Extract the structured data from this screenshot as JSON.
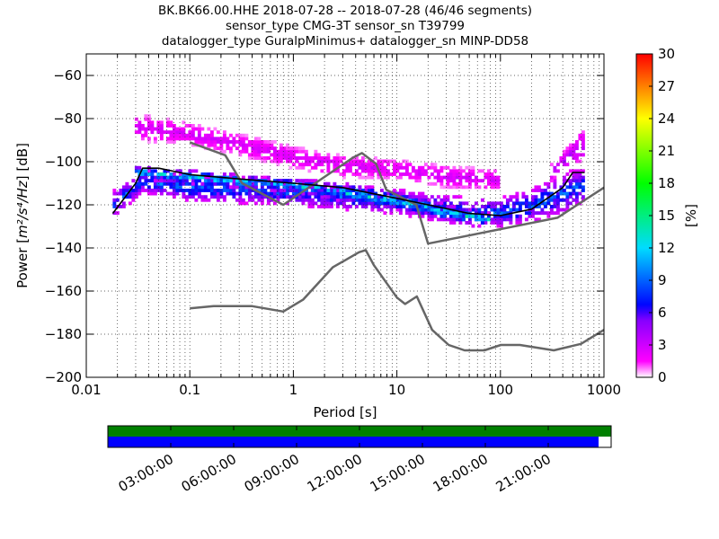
{
  "chart_data": [
    {
      "type": "heatmap",
      "title_lines": [
        "BK.BK66.00.HHE   2018-07-28 -- 2018-07-28  (46/46 segments)",
        "sensor_type CMG-3T sensor_sn T39799",
        "datalogger_type GuralpMinimus+ datalogger_sn MINP-DD58"
      ],
      "xlabel": "Period [s]",
      "ylabel_prefix": "Power [",
      "ylabel_unit": "m²/s⁴/Hz",
      "ylabel_suffix": "] [dB]",
      "x_scale": "log",
      "xlim": [
        0.01,
        1000
      ],
      "x_ticks": [
        0.01,
        0.1,
        1,
        10,
        100,
        1000
      ],
      "x_tick_labels": [
        "0.01",
        "0.1",
        "1",
        "10",
        "100",
        "1000"
      ],
      "ylim": [
        -200,
        -50
      ],
      "y_ticks": [
        -200,
        -180,
        -160,
        -140,
        -120,
        -100,
        -80,
        -60
      ],
      "y_tick_labels": [
        "−200",
        "−180",
        "−160",
        "−140",
        "−120",
        "−100",
        "−80",
        "−60"
      ],
      "grid": true,
      "colorbar": {
        "label": "[%]",
        "range": [
          0,
          30
        ],
        "ticks": [
          0,
          3,
          6,
          9,
          12,
          15,
          18,
          21,
          24,
          27,
          30
        ],
        "tick_labels": [
          "0",
          "3",
          "6",
          "9",
          "12",
          "15",
          "18",
          "21",
          "24",
          "27",
          "30"
        ],
        "colormap": "pqlx"
      },
      "series": [
        {
          "role": "new_high_noise_model",
          "color": "#666666",
          "x": [
            0.1,
            0.22,
            0.32,
            0.8,
            3.8,
            4.6,
            6.3,
            7.9,
            15.4,
            20,
            354.8,
            1000
          ],
          "y": [
            -91,
            -97,
            -110,
            -120,
            -98,
            -96,
            -101,
            -113,
            -120,
            -138,
            -126,
            -112
          ]
        },
        {
          "role": "new_low_noise_model",
          "color": "#666666",
          "x": [
            0.1,
            0.17,
            0.4,
            0.8,
            1.24,
            2.4,
            4.3,
            5,
            6,
            10,
            12,
            15.6,
            21.9,
            31.6,
            45,
            70,
            101,
            154,
            328,
            600,
            1000
          ],
          "y": [
            -168,
            -167,
            -167,
            -169.5,
            -164,
            -149,
            -142,
            -141,
            -148,
            -163,
            -166,
            -162.5,
            -178,
            -185,
            -187.5,
            -187.5,
            -185,
            -185,
            -187.5,
            -184.5,
            -178
          ]
        },
        {
          "role": "mode",
          "color": "#000000",
          "x": [
            0.018,
            0.03,
            0.035,
            0.05,
            0.1,
            0.3,
            1,
            3,
            10,
            20,
            50,
            100,
            200,
            400,
            500,
            650
          ],
          "y": [
            -124,
            -110,
            -103,
            -103,
            -106,
            -108,
            -110,
            -112,
            -117,
            -120,
            -124,
            -125,
            -122,
            -112,
            -105,
            -105
          ]
        }
      ],
      "psd_density_bands": [
        {
          "x": [
            0.018,
            0.035,
            0.1,
            1,
            10,
            50,
            100,
            200,
            500,
            650
          ],
          "y_low": [
            -126,
            -114,
            -118,
            -120,
            -124,
            -130,
            -130,
            -128,
            -122,
            -118
          ],
          "y_high": [
            -114,
            -104,
            -106,
            -108,
            -113,
            -117,
            -117,
            -113,
            -104,
            -104
          ],
          "peak_percent": 9
        },
        {
          "x": [
            0.03,
            0.1,
            0.3,
            1,
            3,
            10,
            30,
            80
          ],
          "y_low": [
            -108,
            -110,
            -112,
            -114,
            -118,
            -122,
            -127,
            -130
          ],
          "y_high": [
            -102,
            -104,
            -106,
            -108,
            -110,
            -114,
            -120,
            -124
          ],
          "peak_percent": 13
        },
        {
          "x": [
            0.03,
            0.1,
            0.3,
            1,
            3,
            10,
            30,
            100
          ],
          "y_low": [
            -90,
            -92,
            -97,
            -103,
            -107,
            -108,
            -112,
            -113
          ],
          "y_high": [
            -78,
            -82,
            -87,
            -93,
            -97,
            -99,
            -102,
            -104
          ],
          "peak_percent": 3
        },
        {
          "x": [
            300,
            400,
            600,
            650
          ],
          "y_low": [
            -110,
            -104,
            -100,
            -100
          ],
          "y_high": [
            -102,
            -96,
            -86,
            -86
          ],
          "peak_percent": 4
        }
      ]
    },
    {
      "type": "timeline",
      "ticks": [
        "03:00:00",
        "06:00:00",
        "09:00:00",
        "12:00:00",
        "15:00:00",
        "18:00:00",
        "21:00:00"
      ],
      "tick_hours": [
        3,
        6,
        9,
        12,
        15,
        18,
        21
      ],
      "range_hours": [
        0,
        24
      ],
      "rows": [
        {
          "role": "data-availability",
          "color": "#008000",
          "coverage": 1.0
        },
        {
          "role": "psd-coverage",
          "color": "#0000ff",
          "coverage": 0.975
        }
      ]
    }
  ]
}
